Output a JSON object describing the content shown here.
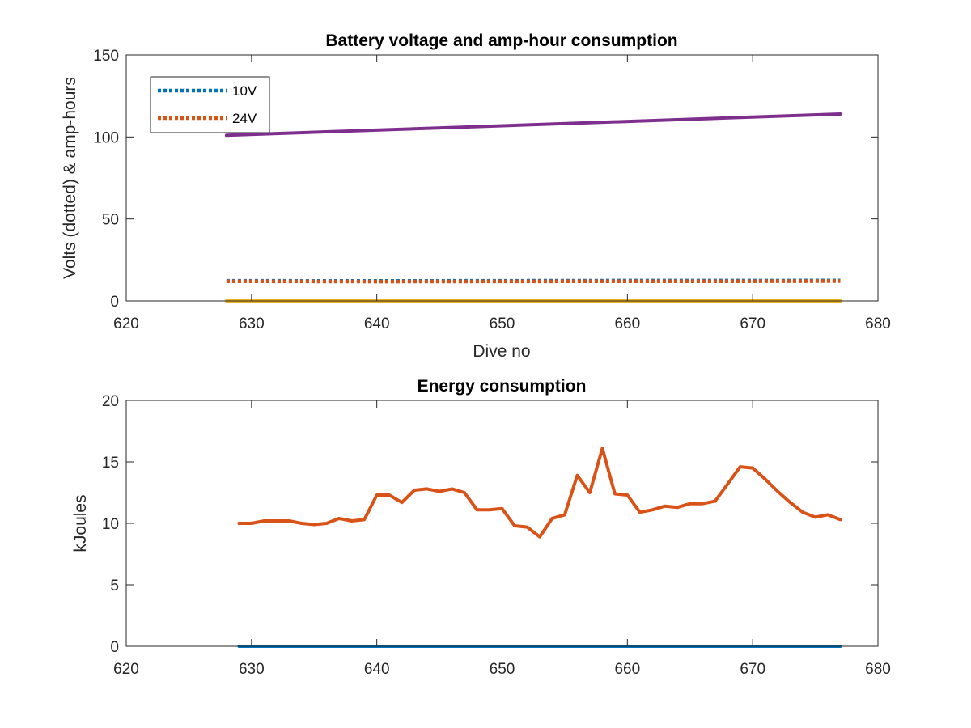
{
  "chart_data": [
    {
      "type": "line",
      "title": "Battery voltage and amp-hour consumption",
      "xlabel": "Dive no",
      "ylabel": "Volts (dotted) & amp-hours",
      "xlim": [
        620,
        680
      ],
      "ylim": [
        0,
        150
      ],
      "xticks": [
        620,
        630,
        640,
        650,
        660,
        670,
        680
      ],
      "yticks": [
        0,
        50,
        100,
        150
      ],
      "legend_position": "top-left",
      "series": [
        {
          "name": "10V",
          "color": "#0072BD",
          "style": "dotted",
          "x": [
            628,
            640,
            650,
            660,
            670,
            677
          ],
          "y": [
            12.3,
            12.2,
            12.3,
            12.4,
            12.4,
            12.5
          ]
        },
        {
          "name": "24V",
          "color": "#D95319",
          "style": "dotted",
          "x": [
            628,
            640,
            650,
            660,
            670,
            677
          ],
          "y": [
            12.0,
            11.8,
            11.9,
            12.0,
            12.0,
            12.1
          ]
        },
        {
          "color": "#EDB120",
          "style": "solid",
          "x": [
            628,
            677
          ],
          "y": [
            0,
            0
          ]
        },
        {
          "color": "#7E2F8E",
          "style": "solid",
          "x": [
            628,
            677
          ],
          "y": [
            101,
            114
          ]
        }
      ]
    },
    {
      "type": "line",
      "title": "Energy consumption",
      "xlabel": "",
      "ylabel": "kJoules",
      "xlim": [
        620,
        680
      ],
      "ylim": [
        0,
        20
      ],
      "xticks": [
        620,
        630,
        640,
        650,
        660,
        670,
        680
      ],
      "yticks": [
        0,
        5,
        10,
        15,
        20
      ],
      "series": [
        {
          "color": "#0072BD",
          "style": "solid",
          "x": [
            629,
            677
          ],
          "y": [
            0,
            0
          ]
        },
        {
          "color": "#D95319",
          "style": "solid",
          "x": [
            629,
            630,
            631,
            632,
            633,
            634,
            635,
            636,
            637,
            638,
            639,
            640,
            641,
            642,
            643,
            644,
            645,
            646,
            647,
            648,
            649,
            650,
            651,
            652,
            653,
            654,
            655,
            656,
            657,
            658,
            659,
            660,
            661,
            662,
            663,
            664,
            665,
            666,
            667,
            668,
            669,
            670,
            671,
            672,
            673,
            674,
            675,
            676,
            677
          ],
          "y": [
            10.0,
            10.0,
            10.2,
            10.2,
            10.2,
            10.0,
            9.9,
            10.0,
            10.4,
            10.2,
            10.3,
            12.3,
            12.3,
            11.7,
            12.7,
            12.8,
            12.6,
            12.8,
            12.5,
            11.1,
            11.1,
            11.2,
            9.8,
            9.7,
            8.9,
            10.4,
            10.7,
            13.9,
            12.5,
            16.1,
            12.4,
            12.3,
            10.9,
            11.1,
            11.4,
            11.3,
            11.6,
            11.6,
            11.8,
            13.2,
            14.6,
            14.5,
            13.6,
            12.6,
            11.7,
            10.9,
            10.5,
            10.7,
            10.3
          ]
        }
      ]
    }
  ]
}
